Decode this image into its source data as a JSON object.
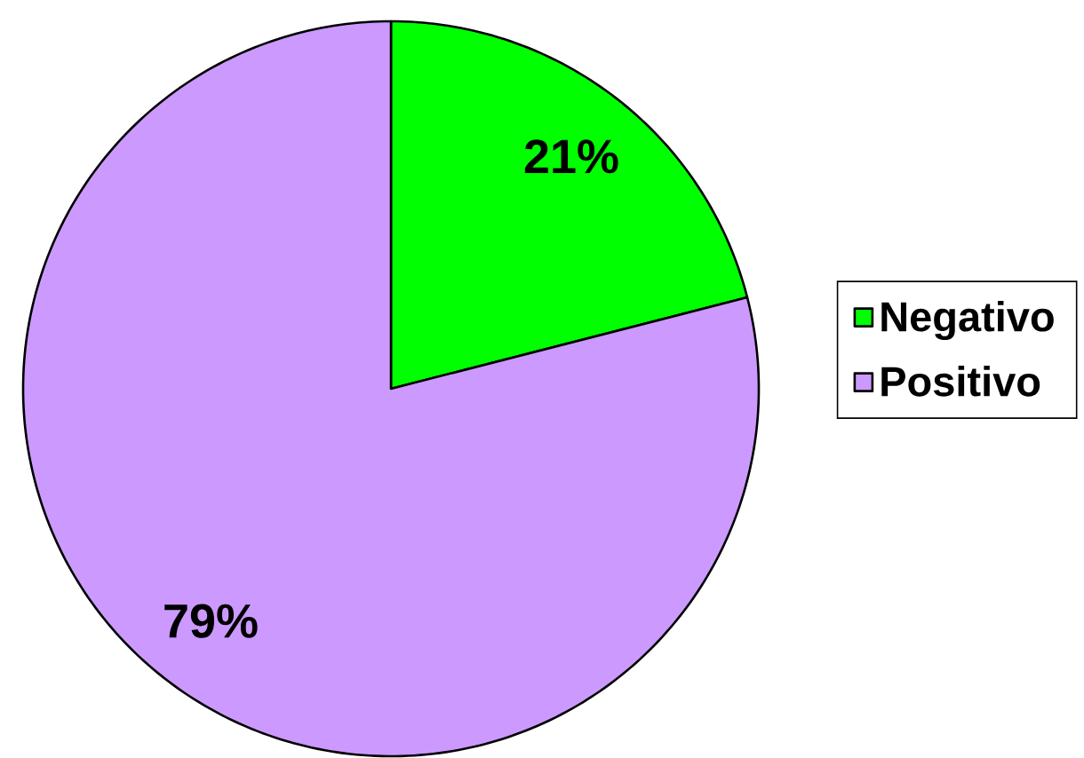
{
  "chart_data": {
    "type": "pie",
    "categories": [
      "Negativo",
      "Positivo"
    ],
    "values": [
      21,
      79
    ],
    "colors": [
      "#00ff00",
      "#cc99ff"
    ],
    "value_labels": [
      "21%",
      "79%"
    ],
    "legend": "right"
  }
}
